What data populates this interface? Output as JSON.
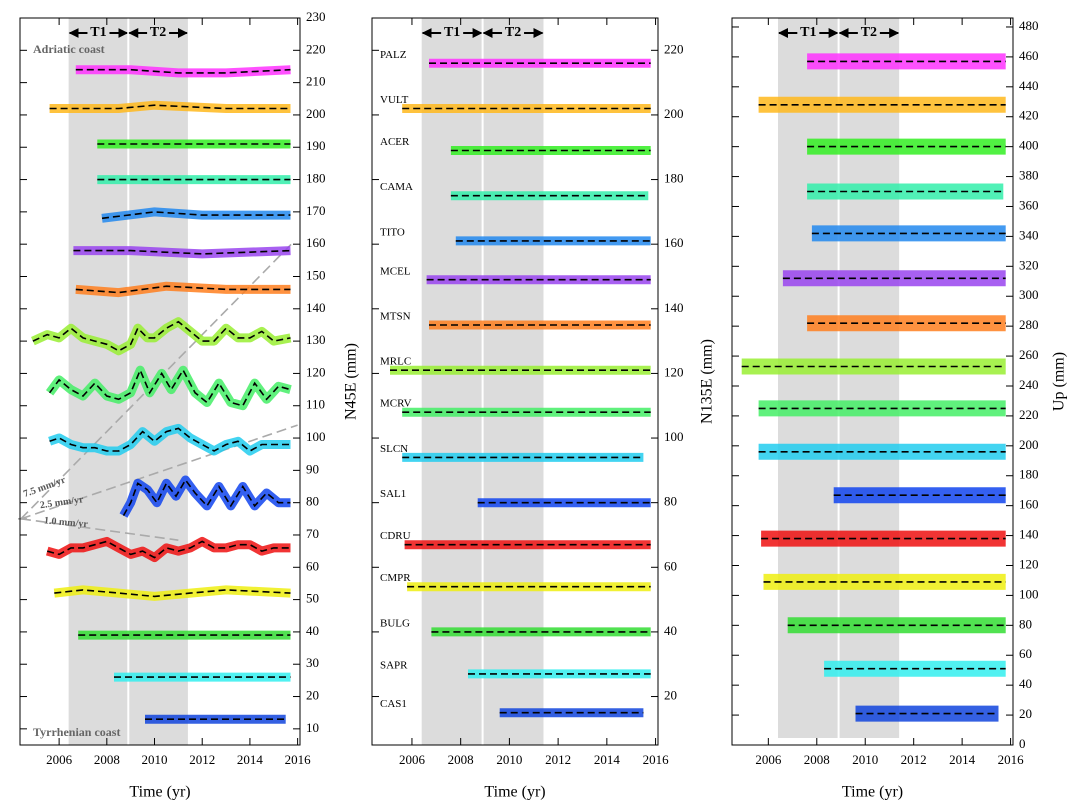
{
  "chart_data": [
    {
      "type": "line",
      "xlabel": "Time (yr)",
      "ylabel": "N45E (mm)",
      "xlim": [
        2004.36,
        2016.1
      ],
      "xticks": [
        2006,
        2008,
        2010,
        2012,
        2014,
        2016
      ],
      "ylim": [
        5,
        230
      ],
      "yticks": [
        10,
        20,
        30,
        40,
        50,
        60,
        70,
        80,
        90,
        100,
        110,
        120,
        130,
        140,
        150,
        160,
        170,
        180,
        190,
        200,
        210,
        220,
        230
      ],
      "periods": [
        {
          "label": "T1",
          "start": 2006.4,
          "end": 2008.9
        },
        {
          "label": "T2",
          "start": 2008.9,
          "end": 2011.4
        }
      ],
      "annotations": [
        "Adriatic coast",
        "Tyrrhenian coast"
      ],
      "rate_origin": [
        2004.4,
        75
      ],
      "rate_lines": [
        {
          "label": "7.5 mm/yr",
          "rate": 7.5,
          "x_end": 2015.8
        },
        {
          "label": "2.5 mm/yr",
          "rate": 2.5,
          "x_end": 2016
        },
        {
          "label": "1.0 mm/yr",
          "rate": -1.0,
          "x_end": 2011
        }
      ],
      "series": [
        {
          "color": "#ff33ff",
          "x": [
            2006.7,
            2009,
            2011,
            2013,
            2015.7
          ],
          "values": [
            214,
            214,
            213,
            213,
            214
          ]
        },
        {
          "color": "#ffb81c",
          "x": [
            2005.6,
            2008.5,
            2010,
            2013,
            2015.7
          ],
          "values": [
            202,
            202,
            203,
            202,
            202
          ]
        },
        {
          "color": "#33ee22",
          "x": [
            2007.6,
            2010,
            2013,
            2015.7
          ],
          "values": [
            191,
            191,
            191,
            191
          ]
        },
        {
          "color": "#33eeaa",
          "x": [
            2007.6,
            2010,
            2013,
            2015.7
          ],
          "values": [
            180,
            180,
            180,
            180
          ]
        },
        {
          "color": "#2288ee",
          "x": [
            2007.8,
            2010,
            2012,
            2015.7
          ],
          "values": [
            168,
            170,
            169,
            169
          ]
        },
        {
          "color": "#9944ee",
          "x": [
            2006.6,
            2009,
            2012,
            2015.7
          ],
          "values": [
            158,
            158,
            157,
            158
          ]
        },
        {
          "color": "#ff7f1f",
          "x": [
            2006.7,
            2008.5,
            2010.5,
            2013,
            2015.7
          ],
          "values": [
            146,
            145,
            147,
            146,
            146
          ]
        },
        {
          "color": "#99ee33",
          "x": [
            2004.9,
            2005.5,
            2006,
            2006.5,
            2007,
            2007.5,
            2008,
            2008.5,
            2009,
            2009.3,
            2009.7,
            2010,
            2010.5,
            2011,
            2011.5,
            2012,
            2012.5,
            2013,
            2013.5,
            2014,
            2014.5,
            2015,
            2015.7
          ],
          "values": [
            130,
            132,
            131,
            134,
            131,
            130,
            129,
            127,
            129,
            134,
            131,
            131,
            134,
            136,
            133,
            130,
            130,
            134,
            131,
            131,
            133,
            130,
            131
          ]
        },
        {
          "color": "#44ee66",
          "x": [
            2005.6,
            2006,
            2006.5,
            2007,
            2007.5,
            2008,
            2008.5,
            2009,
            2009.4,
            2009.8,
            2010.3,
            2010.7,
            2011.2,
            2011.7,
            2012.2,
            2012.7,
            2013.2,
            2013.7,
            2014.2,
            2014.7,
            2015.2,
            2015.7
          ],
          "values": [
            114,
            118,
            115,
            113,
            117,
            113,
            112,
            114,
            121,
            114,
            120,
            115,
            121,
            114,
            111,
            117,
            111,
            110,
            117,
            112,
            116,
            115
          ]
        },
        {
          "color": "#22ccee",
          "x": [
            2005.6,
            2006,
            2006.5,
            2007,
            2007.5,
            2008,
            2008.5,
            2009,
            2009.5,
            2010,
            2010.5,
            2011,
            2011.5,
            2012,
            2012.5,
            2013,
            2013.5,
            2014,
            2014.5,
            2015,
            2015.7
          ],
          "values": [
            99,
            100,
            98,
            97,
            97,
            96,
            96,
            98,
            102,
            99,
            102,
            103,
            100,
            98,
            96,
            98,
            99,
            96,
            98,
            98,
            98
          ]
        },
        {
          "color": "#1144ee",
          "x": [
            2008.7,
            2009,
            2009.3,
            2009.7,
            2010.1,
            2010.5,
            2010.9,
            2011.3,
            2011.7,
            2012.2,
            2012.7,
            2013.2,
            2013.7,
            2014.2,
            2014.7,
            2015.2,
            2015.7
          ],
          "values": [
            76,
            80,
            86,
            84,
            80,
            86,
            82,
            87,
            83,
            79,
            85,
            79,
            85,
            79,
            83,
            80,
            80
          ]
        },
        {
          "color": "#ee1111",
          "x": [
            2005.5,
            2006,
            2006.5,
            2007,
            2007.5,
            2008,
            2008.5,
            2009,
            2009.5,
            2010,
            2010.5,
            2011,
            2011.5,
            2012,
            2012.5,
            2013,
            2013.5,
            2014,
            2014.5,
            2015,
            2015.7
          ],
          "values": [
            65,
            64,
            66,
            66,
            67,
            68,
            66,
            64,
            65,
            63,
            66,
            65,
            66,
            68,
            66,
            66,
            67,
            67,
            65,
            66,
            66
          ]
        },
        {
          "color": "#eeee11",
          "x": [
            2005.8,
            2007,
            2008.5,
            2010,
            2011.5,
            2013,
            2015.7
          ],
          "values": [
            52,
            53,
            52,
            51,
            52,
            53,
            52
          ]
        },
        {
          "color": "#33dd33",
          "x": [
            2006.8,
            2009,
            2011,
            2013,
            2015.7
          ],
          "values": [
            39,
            39,
            39,
            39,
            39
          ]
        },
        {
          "color": "#33eeee",
          "x": [
            2008.3,
            2010,
            2012,
            2015.7
          ],
          "values": [
            26,
            26,
            26,
            26
          ]
        },
        {
          "color": "#1144dd",
          "x": [
            2009.6,
            2011,
            2013,
            2015.5
          ],
          "values": [
            13,
            13,
            13,
            13
          ]
        }
      ]
    },
    {
      "type": "line",
      "xlabel": "Time (yr)",
      "ylabel": "N135E (mm)",
      "xlim": [
        2004.36,
        2016.1
      ],
      "xticks": [
        2006,
        2008,
        2010,
        2012,
        2014,
        2016
      ],
      "ylim": [
        5,
        230
      ],
      "yticks": [
        20,
        40,
        60,
        80,
        100,
        120,
        140,
        160,
        180,
        200,
        220
      ],
      "periods": [
        {
          "label": "T1",
          "start": 2006.4,
          "end": 2008.9
        },
        {
          "label": "T2",
          "start": 2008.9,
          "end": 2011.4
        }
      ],
      "series": [
        {
          "name": "PALZ",
          "color": "#ff33ff",
          "x": [
            2006.7,
            2015.8
          ],
          "values": [
            216,
            216
          ]
        },
        {
          "name": "VULT",
          "color": "#ffb81c",
          "x": [
            2005.6,
            2015.8
          ],
          "values": [
            202,
            202
          ]
        },
        {
          "name": "ACER",
          "color": "#33ee22",
          "x": [
            2007.6,
            2015.8
          ],
          "values": [
            189,
            189
          ]
        },
        {
          "name": "CAMA",
          "color": "#33eeaa",
          "x": [
            2007.6,
            2015.7
          ],
          "values": [
            175,
            175
          ]
        },
        {
          "name": "TITO",
          "color": "#2288ee",
          "x": [
            2007.8,
            2015.8
          ],
          "values": [
            161,
            161
          ]
        },
        {
          "name": "MCEL",
          "color": "#9944ee",
          "x": [
            2006.6,
            2015.8
          ],
          "values": [
            149,
            149
          ]
        },
        {
          "name": "MTSN",
          "color": "#ff7f1f",
          "x": [
            2006.7,
            2015.8
          ],
          "values": [
            135,
            135
          ]
        },
        {
          "name": "MRLC",
          "color": "#99ee33",
          "x": [
            2005.1,
            2015.8
          ],
          "values": [
            121,
            121
          ]
        },
        {
          "name": "MCRV",
          "color": "#44ee66",
          "x": [
            2005.6,
            2015.8
          ],
          "values": [
            108,
            108
          ]
        },
        {
          "name": "SLCN",
          "color": "#22ccee",
          "x": [
            2005.6,
            2015.5
          ],
          "values": [
            94,
            94
          ]
        },
        {
          "name": "SAL1",
          "color": "#1144ee",
          "x": [
            2008.7,
            2015.8
          ],
          "values": [
            80,
            80
          ]
        },
        {
          "name": "CDRU",
          "color": "#ee1111",
          "x": [
            2005.7,
            2015.8
          ],
          "values": [
            67,
            67
          ]
        },
        {
          "name": "CMPR",
          "color": "#eeee11",
          "x": [
            2005.8,
            2015.8
          ],
          "values": [
            54,
            54
          ]
        },
        {
          "name": "BULG",
          "color": "#33dd33",
          "x": [
            2006.8,
            2015.8
          ],
          "values": [
            40,
            40
          ]
        },
        {
          "name": "SAPR",
          "color": "#33eeee",
          "x": [
            2008.3,
            2015.8
          ],
          "values": [
            27,
            27
          ]
        },
        {
          "name": "CAS1",
          "color": "#1144dd",
          "x": [
            2009.6,
            2015.5
          ],
          "values": [
            15,
            15
          ]
        }
      ]
    },
    {
      "type": "line",
      "xlabel": "Time (yr)",
      "ylabel": "Up (mm)",
      "xlim": [
        2004.5,
        2016.1
      ],
      "xticks": [
        2006,
        2008,
        2010,
        2012,
        2014,
        2016
      ],
      "ylim": [
        0,
        486
      ],
      "yticks": [
        0,
        20,
        40,
        60,
        80,
        100,
        120,
        140,
        160,
        180,
        200,
        220,
        240,
        260,
        280,
        300,
        320,
        340,
        360,
        380,
        400,
        420,
        440,
        460,
        480
      ],
      "periods": [
        {
          "label": "T1",
          "start": 2006.4,
          "end": 2008.9
        },
        {
          "label": "T2",
          "start": 2008.9,
          "end": 2011.4
        }
      ],
      "series": [
        {
          "color": "#ff33ff",
          "x": [
            2007.6,
            2015.8
          ],
          "values": [
            457,
            457
          ]
        },
        {
          "color": "#ffb81c",
          "x": [
            2005.6,
            2015.8
          ],
          "values": [
            428,
            428
          ]
        },
        {
          "color": "#33ee22",
          "x": [
            2007.6,
            2015.8
          ],
          "values": [
            400,
            400
          ]
        },
        {
          "color": "#33eeaa",
          "x": [
            2007.6,
            2015.7
          ],
          "values": [
            370,
            370
          ]
        },
        {
          "color": "#2288ee",
          "x": [
            2007.8,
            2015.8
          ],
          "values": [
            342,
            342
          ]
        },
        {
          "color": "#9944ee",
          "x": [
            2006.6,
            2015.8
          ],
          "values": [
            312,
            312
          ]
        },
        {
          "color": "#ff7f1f",
          "x": [
            2007.6,
            2015.8
          ],
          "values": [
            282,
            282
          ]
        },
        {
          "color": "#99ee33",
          "x": [
            2004.9,
            2015.8
          ],
          "values": [
            253,
            253
          ]
        },
        {
          "color": "#44ee66",
          "x": [
            2005.6,
            2015.8
          ],
          "values": [
            225,
            225
          ]
        },
        {
          "color": "#22ccee",
          "x": [
            2005.6,
            2015.8
          ],
          "values": [
            196,
            196
          ]
        },
        {
          "color": "#1144ee",
          "x": [
            2008.7,
            2015.8
          ],
          "values": [
            167,
            167
          ]
        },
        {
          "color": "#ee1111",
          "x": [
            2005.7,
            2015.8
          ],
          "values": [
            138,
            138
          ]
        },
        {
          "color": "#eeee11",
          "x": [
            2005.8,
            2015.8
          ],
          "values": [
            109,
            109
          ]
        },
        {
          "color": "#33dd33",
          "x": [
            2006.8,
            2015.8
          ],
          "values": [
            80,
            80
          ]
        },
        {
          "color": "#33eeee",
          "x": [
            2008.3,
            2015.8
          ],
          "values": [
            51,
            51
          ]
        },
        {
          "color": "#1144dd",
          "x": [
            2009.6,
            2015.5
          ],
          "values": [
            21,
            21
          ]
        }
      ]
    }
  ]
}
